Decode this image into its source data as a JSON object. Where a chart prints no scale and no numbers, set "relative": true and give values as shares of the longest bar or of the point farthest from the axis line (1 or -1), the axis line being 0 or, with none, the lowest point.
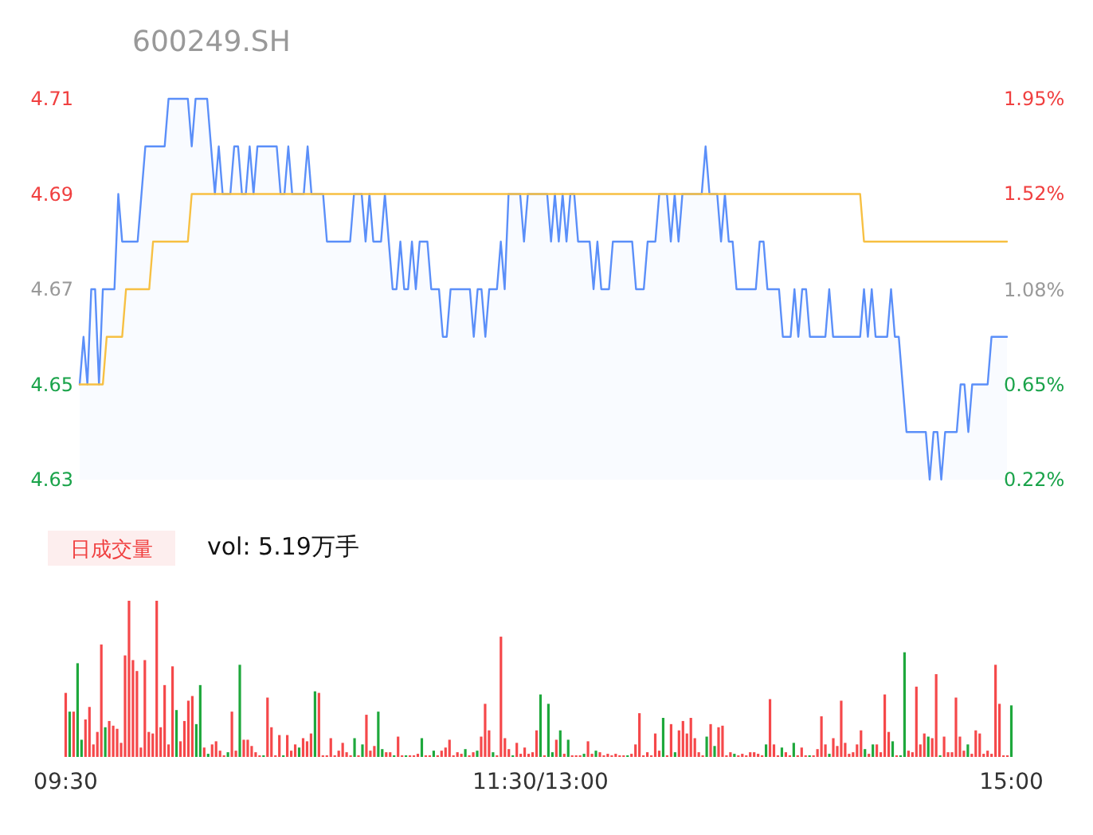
{
  "chart_data": [
    {
      "type": "line",
      "title": "600249.SH",
      "ylim": [
        4.63,
        4.71
      ],
      "yticks": [
        4.63,
        4.65,
        4.67,
        4.69,
        4.71
      ],
      "y2lim": [
        0.22,
        1.95
      ],
      "y2ticks": [
        {
          "value": 0.22,
          "label": "0.22%"
        },
        {
          "value": 0.65,
          "label": "0.65%"
        },
        {
          "value": 1.08,
          "label": "1.08%"
        },
        {
          "value": 1.52,
          "label": "1.52%"
        },
        {
          "value": 1.95,
          "label": "1.95%"
        }
      ],
      "tick_labels": "y",
      "categories": [
        null,
        null,
        null,
        null,
        null,
        null,
        null,
        null,
        null,
        null,
        null,
        null,
        null,
        null,
        null,
        null,
        null,
        null,
        null,
        null,
        null,
        null,
        null,
        null,
        null,
        null,
        null,
        null,
        null,
        null,
        null,
        null,
        null,
        null,
        null,
        null,
        null,
        null,
        null,
        null,
        null,
        null,
        null,
        null,
        null,
        null,
        null,
        null,
        null,
        null,
        null,
        null,
        null,
        null,
        null,
        null,
        null,
        null,
        null,
        null,
        null,
        null,
        null,
        null,
        null,
        null,
        null,
        null,
        null,
        null,
        null,
        null,
        null,
        null,
        null,
        null,
        null,
        null,
        null,
        null,
        null,
        null,
        null,
        null,
        null,
        null,
        null,
        null,
        null,
        null,
        null,
        null,
        null,
        null,
        null,
        null,
        null,
        null,
        null,
        null,
        null,
        null,
        null,
        null,
        null,
        null,
        null,
        null,
        null,
        null,
        null,
        null,
        null,
        null,
        null,
        null,
        null,
        null,
        null,
        null,
        null,
        null,
        null,
        null,
        null,
        null,
        null,
        null,
        null,
        null,
        null,
        null,
        null,
        null,
        null,
        null,
        null,
        null,
        null,
        null,
        null,
        null,
        null,
        null,
        null,
        null,
        null,
        null,
        null,
        null,
        null,
        null,
        null,
        null,
        null,
        null,
        null,
        null,
        null,
        null,
        null,
        null,
        null,
        null,
        null,
        null,
        null,
        null,
        null,
        null,
        null,
        null,
        null,
        null,
        null,
        null,
        null,
        null,
        null,
        null,
        null,
        null,
        null,
        null,
        null,
        null,
        null,
        null,
        null,
        null,
        null,
        null,
        null,
        null,
        null,
        null,
        null,
        null,
        null,
        null,
        null,
        null,
        null,
        null,
        null,
        null,
        null,
        null,
        null,
        null,
        null,
        null,
        null,
        null,
        null,
        null,
        null,
        null,
        null,
        null,
        null,
        null,
        null,
        null,
        null,
        null,
        null,
        null,
        null,
        null,
        null,
        null,
        null,
        null,
        null,
        null,
        null,
        null,
        null,
        null,
        null
      ],
      "series": [
        {
          "type": "area",
          "color": "#5b8ff9",
          "values": [
            4.65,
            4.66,
            4.65,
            4.67,
            4.67,
            4.65,
            4.67,
            4.67,
            4.67,
            4.67,
            4.69,
            4.68,
            4.68,
            4.68,
            4.68,
            4.68,
            4.69,
            4.7,
            4.7,
            4.7,
            4.7,
            4.7,
            4.7,
            4.71,
            4.71,
            4.71,
            4.71,
            4.71,
            4.71,
            4.7,
            4.71,
            4.71,
            4.71,
            4.71,
            4.7,
            4.69,
            4.7,
            4.69,
            4.69,
            4.69,
            4.7,
            4.7,
            4.69,
            4.69,
            4.7,
            4.69,
            4.7,
            4.7,
            4.7,
            4.7,
            4.7,
            4.7,
            4.69,
            4.69,
            4.7,
            4.69,
            4.69,
            4.69,
            4.69,
            4.7,
            4.69,
            4.69,
            4.69,
            4.69,
            4.68,
            4.68,
            4.68,
            4.68,
            4.68,
            4.68,
            4.68,
            4.69,
            4.69,
            4.69,
            4.68,
            4.69,
            4.68,
            4.68,
            4.68,
            4.69,
            4.68,
            4.67,
            4.67,
            4.68,
            4.67,
            4.67,
            4.68,
            4.67,
            4.68,
            4.68,
            4.68,
            4.67,
            4.67,
            4.67,
            4.66,
            4.66,
            4.67,
            4.67,
            4.67,
            4.67,
            4.67,
            4.67,
            4.66,
            4.67,
            4.67,
            4.66,
            4.67,
            4.67,
            4.67,
            4.68,
            4.67,
            4.69,
            4.69,
            4.69,
            4.69,
            4.68,
            4.69,
            4.69,
            4.69,
            4.69,
            4.69,
            4.69,
            4.68,
            4.69,
            4.68,
            4.69,
            4.68,
            4.69,
            4.69,
            4.68,
            4.68,
            4.68,
            4.68,
            4.67,
            4.68,
            4.67,
            4.67,
            4.67,
            4.68,
            4.68,
            4.68,
            4.68,
            4.68,
            4.68,
            4.67,
            4.67,
            4.67,
            4.68,
            4.68,
            4.68,
            4.69,
            4.69,
            4.69,
            4.68,
            4.69,
            4.68,
            4.69,
            4.69,
            4.69,
            4.69,
            4.69,
            4.69,
            4.7,
            4.69,
            4.69,
            4.69,
            4.68,
            4.69,
            4.68,
            4.68,
            4.67,
            4.67,
            4.67,
            4.67,
            4.67,
            4.67,
            4.68,
            4.68,
            4.67,
            4.67,
            4.67,
            4.67,
            4.66,
            4.66,
            4.66,
            4.67,
            4.66,
            4.67,
            4.67,
            4.66,
            4.66,
            4.66,
            4.66,
            4.66,
            4.67,
            4.66,
            4.66,
            4.66,
            4.66,
            4.66,
            4.66,
            4.66,
            4.66,
            4.67,
            4.66,
            4.67,
            4.66,
            4.66,
            4.66,
            4.66,
            4.67,
            4.66,
            4.66,
            4.65,
            4.64,
            4.64,
            4.64,
            4.64,
            4.64,
            4.64,
            4.63,
            4.64,
            4.64,
            4.63,
            4.64,
            4.64,
            4.64,
            4.64,
            4.65,
            4.65,
            4.64,
            4.65,
            4.65,
            4.65,
            4.65,
            4.65,
            4.66,
            4.66,
            4.66,
            4.66,
            4.66
          ]
        },
        {
          "type": "line",
          "color": "#f7c043",
          "values": [
            4.65,
            4.65,
            4.65,
            4.65,
            4.65,
            4.65,
            4.65,
            4.66,
            4.66,
            4.66,
            4.66,
            4.66,
            4.67,
            4.67,
            4.67,
            4.67,
            4.67,
            4.67,
            4.67,
            4.68,
            4.68,
            4.68,
            4.68,
            4.68,
            4.68,
            4.68,
            4.68,
            4.68,
            4.68,
            4.69,
            4.69,
            4.69,
            4.69,
            4.69,
            4.69,
            4.69,
            4.69,
            4.69,
            4.69,
            4.69,
            4.69,
            4.69,
            4.69,
            4.69,
            4.69,
            4.69,
            4.69,
            4.69,
            4.69,
            4.69,
            4.69,
            4.69,
            4.69,
            4.69,
            4.69,
            4.69,
            4.69,
            4.69,
            4.69,
            4.69,
            4.69,
            4.69,
            4.69,
            4.69,
            4.69,
            4.69,
            4.69,
            4.69,
            4.69,
            4.69,
            4.69,
            4.69,
            4.69,
            4.69,
            4.69,
            4.69,
            4.69,
            4.69,
            4.69,
            4.69,
            4.69,
            4.69,
            4.69,
            4.69,
            4.69,
            4.69,
            4.69,
            4.69,
            4.69,
            4.69,
            4.69,
            4.69,
            4.69,
            4.69,
            4.69,
            4.69,
            4.69,
            4.69,
            4.69,
            4.69,
            4.69,
            4.69,
            4.69,
            4.69,
            4.69,
            4.69,
            4.69,
            4.69,
            4.69,
            4.69,
            4.69,
            4.69,
            4.69,
            4.69,
            4.69,
            4.69,
            4.69,
            4.69,
            4.69,
            4.69,
            4.69,
            4.69,
            4.69,
            4.69,
            4.69,
            4.69,
            4.69,
            4.69,
            4.69,
            4.69,
            4.69,
            4.69,
            4.69,
            4.69,
            4.69,
            4.69,
            4.69,
            4.69,
            4.69,
            4.69,
            4.69,
            4.69,
            4.69,
            4.69,
            4.69,
            4.69,
            4.69,
            4.69,
            4.69,
            4.69,
            4.69,
            4.69,
            4.69,
            4.69,
            4.69,
            4.69,
            4.69,
            4.69,
            4.69,
            4.69,
            4.69,
            4.69,
            4.69,
            4.69,
            4.69,
            4.69,
            4.69,
            4.69,
            4.69,
            4.69,
            4.69,
            4.69,
            4.69,
            4.69,
            4.69,
            4.69,
            4.69,
            4.69,
            4.69,
            4.69,
            4.69,
            4.69,
            4.69,
            4.69,
            4.69,
            4.69,
            4.69,
            4.69,
            4.69,
            4.69,
            4.69,
            4.69,
            4.69,
            4.69,
            4.69,
            4.69,
            4.69,
            4.69,
            4.69,
            4.69,
            4.69,
            4.69,
            4.69,
            4.68,
            4.68,
            4.68,
            4.68,
            4.68,
            4.68,
            4.68,
            4.68,
            4.68,
            4.68,
            4.68,
            4.68,
            4.68,
            4.68,
            4.68,
            4.68,
            4.68,
            4.68,
            4.68,
            4.68,
            4.68,
            4.68,
            4.68,
            4.68,
            4.68,
            4.68,
            4.68,
            4.68,
            4.68,
            4.68,
            4.68,
            4.68,
            4.68,
            4.68,
            4.68,
            4.68,
            4.68,
            4.68
          ]
        }
      ]
    },
    {
      "type": "bar",
      "relative": true,
      "annotations": [
        "日成交量",
        "vol: 5.19万手"
      ],
      "categories": [
        "09:30",
        null,
        null,
        null,
        null,
        null,
        null,
        null,
        null,
        null,
        null,
        null,
        null,
        null,
        null,
        null,
        null,
        null,
        null,
        null,
        null,
        null,
        null,
        null,
        null,
        null,
        null,
        null,
        null,
        null,
        null,
        null,
        null,
        null,
        null,
        null,
        null,
        null,
        null,
        null,
        null,
        null,
        null,
        null,
        null,
        null,
        null,
        null,
        null,
        null,
        null,
        null,
        null,
        null,
        null,
        null,
        null,
        null,
        null,
        null,
        null,
        null,
        null,
        null,
        null,
        null,
        null,
        null,
        null,
        null,
        null,
        null,
        null,
        null,
        null,
        null,
        null,
        null,
        null,
        null,
        null,
        null,
        null,
        null,
        null,
        null,
        null,
        null,
        null,
        null,
        null,
        null,
        null,
        null,
        null,
        null,
        null,
        null,
        null,
        null,
        null,
        null,
        null,
        null,
        null,
        null,
        null,
        null,
        null,
        null,
        null,
        null,
        null,
        null,
        null,
        null,
        null,
        null,
        null,
        null,
        "11:30/13:00",
        null,
        null,
        null,
        null,
        null,
        null,
        null,
        null,
        null,
        null,
        null,
        null,
        null,
        null,
        null,
        null,
        null,
        null,
        null,
        null,
        null,
        null,
        null,
        null,
        null,
        null,
        null,
        null,
        null,
        null,
        null,
        null,
        null,
        null,
        null,
        null,
        null,
        null,
        null,
        null,
        null,
        null,
        null,
        null,
        null,
        null,
        null,
        null,
        null,
        null,
        null,
        null,
        null,
        null,
        null,
        null,
        null,
        null,
        null,
        null,
        null,
        null,
        null,
        null,
        null,
        null,
        null,
        null,
        null,
        null,
        null,
        null,
        null,
        null,
        null,
        null,
        null,
        null,
        null,
        null,
        null,
        null,
        null,
        null,
        null,
        null,
        null,
        null,
        null,
        null,
        null,
        null,
        null,
        null,
        null,
        null,
        null,
        null,
        null,
        null,
        null,
        null,
        null,
        null,
        null,
        null,
        null,
        null,
        null,
        null,
        null,
        null,
        null,
        null,
        null,
        null,
        null,
        null,
        "15:00"
      ],
      "series": [
        {
          "color": "#f5484a",
          "values": [
            0.41,
            null,
            0.29,
            null,
            null,
            0.24,
            0.32,
            0.08,
            0.16,
            0.72,
            null,
            0.23,
            0.2,
            0.18,
            0.09,
            0.65,
            1,
            0.62,
            0.55,
            0.06,
            0.62,
            0.16,
            0.15,
            1,
            0.19,
            0.46,
            0.08,
            0.58,
            null,
            0.1,
            0.23,
            0.36,
            0.39,
            null,
            null,
            0.06,
            null,
            0.08,
            0.1,
            0.04,
            0.01,
            null,
            0.29,
            0.04,
            null,
            0.11,
            0.11,
            0.07,
            0.03,
            0.01,
            null,
            0.38,
            0.19,
            0.01,
            0.14,
            null,
            0.14,
            0.04,
            0.08,
            null,
            0.12,
            0.1,
            0.15,
            null,
            0.41,
            0.01,
            0.01,
            0.12,
            0.01,
            0.04,
            0.09,
            0.03,
            0.01,
            null,
            0.01,
            null,
            0.27,
            0.04,
            0.07,
            null,
            null,
            0.03,
            0.03,
            null,
            0.13,
            0.01,
            null,
            0.01,
            0.01,
            0.02,
            null,
            0.01,
            0.01,
            null,
            0.01,
            0.04,
            0.06,
            0.11,
            0.01,
            0.03,
            0.02,
            null,
            0.01,
            0.03,
            null,
            0.13,
            0.34,
            0.17,
            null,
            0.01,
            0.77,
            0.12,
            0.05,
            null,
            0.09,
            0.02,
            0.06,
            0.02,
            0.03,
            0.17,
            null,
            0.01,
            null,
            null,
            0.11,
            null,
            0.02,
            null,
            0.01,
            0.01,
            0.01,
            null,
            0.1,
            0.02,
            null,
            0.03,
            0.01,
            0.02,
            0.01,
            0.02,
            0.01,
            0.01,
            null,
            0.02,
            0.08,
            0.28,
            0.01,
            0.03,
            0.01,
            0.15,
            0.04,
            null,
            0.01,
            0.21,
            null,
            0.17,
            0.23,
            0.15,
            0.25,
            0.12,
            0.03,
            0.01,
            null,
            0.21,
            null,
            0.19,
            0.2,
            0.01,
            0.03,
            null,
            0.01,
            0.02,
            0.01,
            0.03,
            0.03,
            0.02,
            0.01,
            null,
            0.37,
            0.08,
            0.01,
            null,
            0.03,
            0.01,
            null,
            0.01,
            0.06,
            0.01,
            null,
            0.01,
            0.05,
            0.26,
            0.08,
            null,
            0.12,
            0.07,
            0.36,
            0.09,
            0.02,
            0.03,
            0.08,
            0.17,
            null,
            0.02,
            null,
            0.08,
            0.03,
            0.4,
            0.16,
            null,
            0.01,
            null,
            null,
            0.04,
            0.03,
            0.45,
            0.08,
            0.15,
            null,
            0.12,
            0.53,
            null,
            0.13,
            0.03,
            0.03,
            0.38,
            0.13,
            0.04,
            null,
            0.02,
            0.17,
            0.15,
            0.02,
            0.04,
            0.02,
            0.59,
            0.34,
            0.01,
            0.01,
            null
          ]
        },
        {
          "color": "#1ea83c",
          "values": [
            null,
            0.29,
            null,
            0.6,
            0.11,
            null,
            null,
            null,
            null,
            null,
            0.19,
            null,
            null,
            null,
            null,
            null,
            null,
            null,
            null,
            null,
            null,
            null,
            null,
            null,
            null,
            null,
            null,
            null,
            0.3,
            null,
            null,
            null,
            null,
            0.21,
            0.46,
            null,
            0.02,
            null,
            null,
            null,
            null,
            0.03,
            null,
            null,
            0.59,
            null,
            null,
            null,
            null,
            null,
            0.01,
            null,
            null,
            null,
            null,
            0.01,
            null,
            null,
            null,
            0.06,
            null,
            null,
            null,
            0.42,
            null,
            null,
            null,
            null,
            null,
            null,
            null,
            null,
            null,
            0.12,
            null,
            0.08,
            null,
            null,
            null,
            0.29,
            0.05,
            null,
            null,
            0.01,
            null,
            null,
            0.01,
            null,
            null,
            null,
            0.12,
            null,
            null,
            0.04,
            null,
            null,
            null,
            null,
            null,
            null,
            null,
            0.05,
            null,
            null,
            0.04,
            null,
            null,
            null,
            0.03,
            null,
            null,
            null,
            null,
            0.01,
            null,
            null,
            null,
            null,
            null,
            null,
            0.4,
            null,
            0.34,
            0.03,
            null,
            0.17,
            null,
            0.11,
            null,
            null,
            null,
            0.02,
            null,
            null,
            0.04,
            null,
            null,
            null,
            null,
            null,
            null,
            null,
            0.01,
            null,
            null,
            null,
            null,
            null,
            null,
            null,
            null,
            0.25,
            null,
            null,
            0.03,
            null,
            null,
            null,
            null,
            null,
            null,
            null,
            0.13,
            null,
            0.07,
            null,
            null,
            null,
            null,
            0.02,
            null,
            null,
            null,
            null,
            null,
            null,
            null,
            0.08,
            null,
            null,
            null,
            0.06,
            null,
            null,
            0.09,
            null,
            null,
            null,
            0.01,
            null,
            null,
            null,
            null,
            0.02,
            null,
            null,
            null,
            null,
            null,
            null,
            null,
            null,
            0.05,
            null,
            0.08,
            null,
            null,
            null,
            null,
            0.1,
            null,
            0.01,
            0.67,
            null,
            null,
            null,
            null,
            null,
            0.13,
            null,
            null,
            0.01,
            null,
            null,
            null,
            null,
            null,
            null,
            0.08,
            null,
            null,
            null,
            null,
            null,
            null,
            null,
            null,
            null,
            null,
            0.33
          ]
        }
      ]
    }
  ]
}
